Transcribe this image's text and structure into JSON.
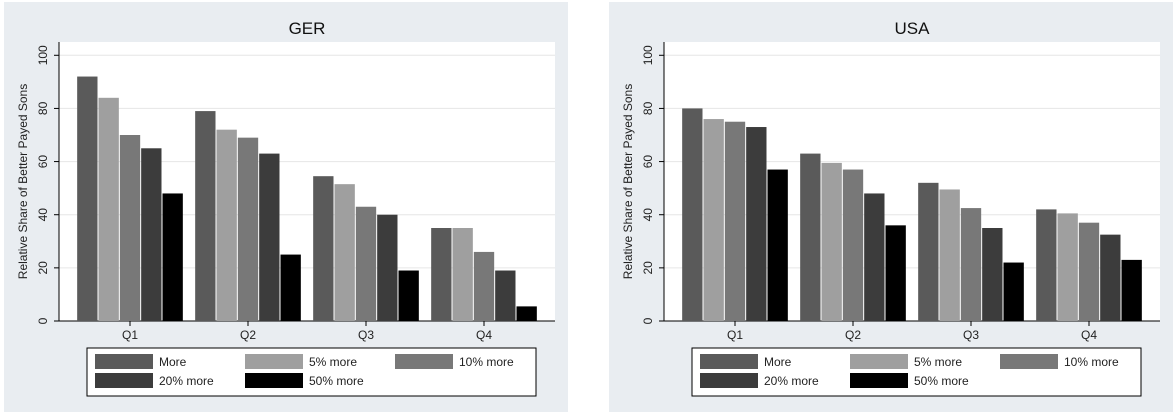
{
  "chart_data": [
    {
      "type": "bar",
      "title": "GER",
      "ylabel": "Relative Share of Better Payed Sons",
      "ylim": [
        0,
        105
      ],
      "yticks": [
        0,
        20,
        40,
        60,
        80,
        100
      ],
      "categories": [
        "Q1",
        "Q2",
        "Q3",
        "Q4"
      ],
      "grid": true,
      "legend_position": "bottom",
      "series": [
        {
          "name": "More",
          "color": "#5a5a5a",
          "values": [
            92,
            79,
            54.5,
            35
          ]
        },
        {
          "name": "5% more",
          "color": "#9f9f9f",
          "values": [
            84,
            72,
            51.5,
            35
          ]
        },
        {
          "name": "10% more",
          "color": "#787878",
          "values": [
            70,
            69,
            43,
            26
          ]
        },
        {
          "name": "20% more",
          "color": "#3c3c3c",
          "values": [
            65,
            63,
            40,
            19
          ]
        },
        {
          "name": "50% more",
          "color": "#000000",
          "values": [
            48,
            25,
            19,
            5.5
          ]
        }
      ]
    },
    {
      "type": "bar",
      "title": "USA",
      "ylabel": "Relative Share of Better Payed Sons",
      "ylim": [
        0,
        105
      ],
      "yticks": [
        0,
        20,
        40,
        60,
        80,
        100
      ],
      "categories": [
        "Q1",
        "Q2",
        "Q3",
        "Q4"
      ],
      "grid": true,
      "legend_position": "bottom",
      "series": [
        {
          "name": "More",
          "color": "#5a5a5a",
          "values": [
            80,
            63,
            52,
            42
          ]
        },
        {
          "name": "5% more",
          "color": "#9f9f9f",
          "values": [
            76,
            59.5,
            49.5,
            40.5
          ]
        },
        {
          "name": "10% more",
          "color": "#787878",
          "values": [
            75,
            57,
            42.5,
            37
          ]
        },
        {
          "name": "20% more",
          "color": "#3c3c3c",
          "values": [
            73,
            48,
            35,
            32.5
          ]
        },
        {
          "name": "50% more",
          "color": "#000000",
          "values": [
            57,
            36,
            22,
            23
          ]
        }
      ]
    }
  ]
}
